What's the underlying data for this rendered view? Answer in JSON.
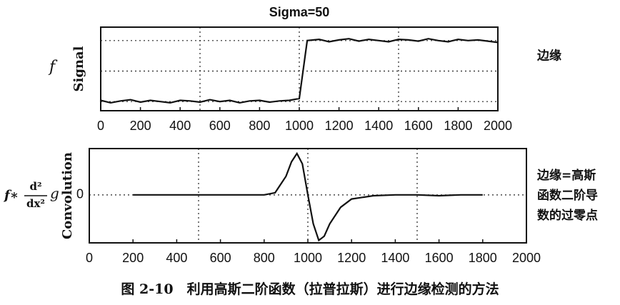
{
  "chart_data": [
    {
      "type": "line",
      "title": "Sigma=50",
      "ylabel": "Signal",
      "side_label": "f",
      "annotation": [
        "边缘"
      ],
      "x": [
        0,
        50,
        100,
        150,
        200,
        250,
        300,
        350,
        400,
        450,
        500,
        550,
        600,
        650,
        700,
        750,
        800,
        850,
        900,
        950,
        1000,
        1040,
        1100,
        1150,
        1200,
        1250,
        1300,
        1350,
        1400,
        1450,
        1500,
        1550,
        1600,
        1650,
        1700,
        1750,
        1800,
        1850,
        1900,
        1950,
        2000
      ],
      "series": [
        {
          "name": "Signal",
          "color": "#111111",
          "values": [
            0.02,
            -0.02,
            0.01,
            0.03,
            -0.01,
            0.02,
            0.0,
            -0.02,
            0.02,
            0.01,
            -0.01,
            0.03,
            0.0,
            0.02,
            -0.02,
            0.01,
            0.02,
            -0.01,
            0.01,
            0.02,
            0.05,
            1.0,
            1.02,
            0.98,
            1.01,
            1.03,
            0.99,
            1.02,
            1.0,
            0.98,
            1.02,
            1.01,
            0.99,
            1.03,
            1.0,
            0.98,
            1.02,
            1.0,
            1.01,
            0.99,
            0.97
          ]
        }
      ],
      "xlim": [
        0,
        2000
      ],
      "xticks": [
        0,
        200,
        400,
        600,
        800,
        1000,
        1200,
        1400,
        1600,
        1800,
        2000
      ],
      "ylim": [
        -0.15,
        1.22
      ],
      "ygrid": [
        0,
        0.5,
        1
      ],
      "xgrid": [
        500,
        1000,
        1500
      ]
    },
    {
      "type": "line",
      "ylabel": "Convolution",
      "side_formula": {
        "prefix": "f∗",
        "numerator": "d²",
        "denominator": "dx²",
        "suffix": "g"
      },
      "annotation": [
        "边缘=高斯",
        "函数二阶导",
        "数的过零点"
      ],
      "x": [
        200,
        300,
        400,
        500,
        600,
        700,
        800,
        850,
        900,
        925,
        950,
        975,
        1000,
        1025,
        1050,
        1075,
        1100,
        1150,
        1200,
        1300,
        1400,
        1500,
        1600,
        1700,
        1800
      ],
      "series": [
        {
          "name": "Convolution",
          "color": "#111111",
          "values": [
            0,
            0,
            0,
            0,
            0,
            0,
            0,
            0.05,
            0.45,
            0.8,
            1.0,
            0.75,
            0.0,
            -0.7,
            -1.1,
            -1.0,
            -0.7,
            -0.3,
            -0.1,
            -0.02,
            0,
            0,
            -0.02,
            0,
            0
          ]
        }
      ],
      "xlim": [
        0,
        2000
      ],
      "xticks": [
        0,
        200,
        400,
        600,
        800,
        1000,
        1200,
        1400,
        1600,
        1800,
        2000
      ],
      "ylim": [
        -1.16,
        1.12
      ],
      "yticks": [
        0
      ],
      "xgrid": [
        500,
        1000,
        1500
      ]
    }
  ],
  "caption": "图 2-10　利用高斯二阶函数（拉普拉斯）进行边缘检测的方法"
}
